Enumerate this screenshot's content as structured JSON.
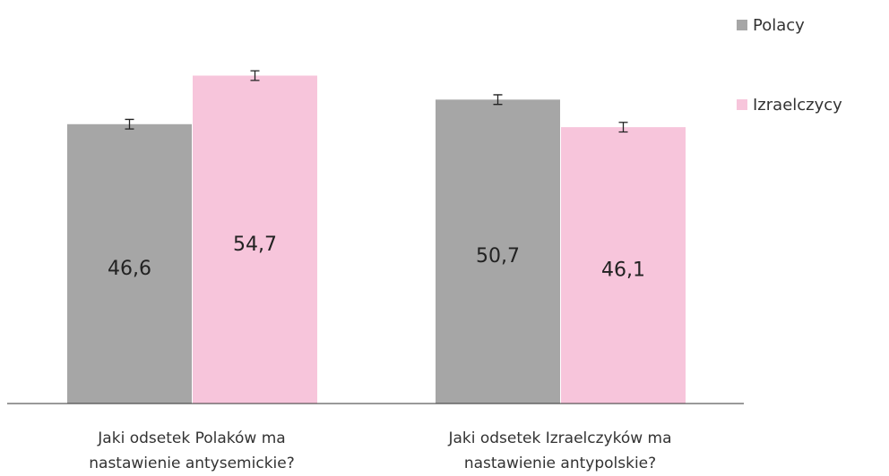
{
  "chart_data": {
    "type": "bar",
    "categories": [
      [
        "Jaki odsetek Polaków ma",
        "nastawienie antysemickie?"
      ],
      [
        "Jaki odsetek Izraelczyków ma",
        "nastawienie antypolskie?"
      ]
    ],
    "series": [
      {
        "name": "Polacy",
        "color": "#a6a6a6",
        "values": [
          46.6,
          50.7
        ],
        "value_labels": [
          "46,6",
          "50,7"
        ],
        "errors": [
          0.8,
          0.8
        ]
      },
      {
        "name": "Izraelczycy",
        "color": "#f7c5db",
        "values": [
          54.7,
          46.1
        ],
        "value_labels": [
          "54,7",
          "46,1"
        ],
        "errors": [
          0.8,
          0.8
        ]
      }
    ],
    "ylim": [
      0,
      60
    ],
    "legend": "right"
  }
}
